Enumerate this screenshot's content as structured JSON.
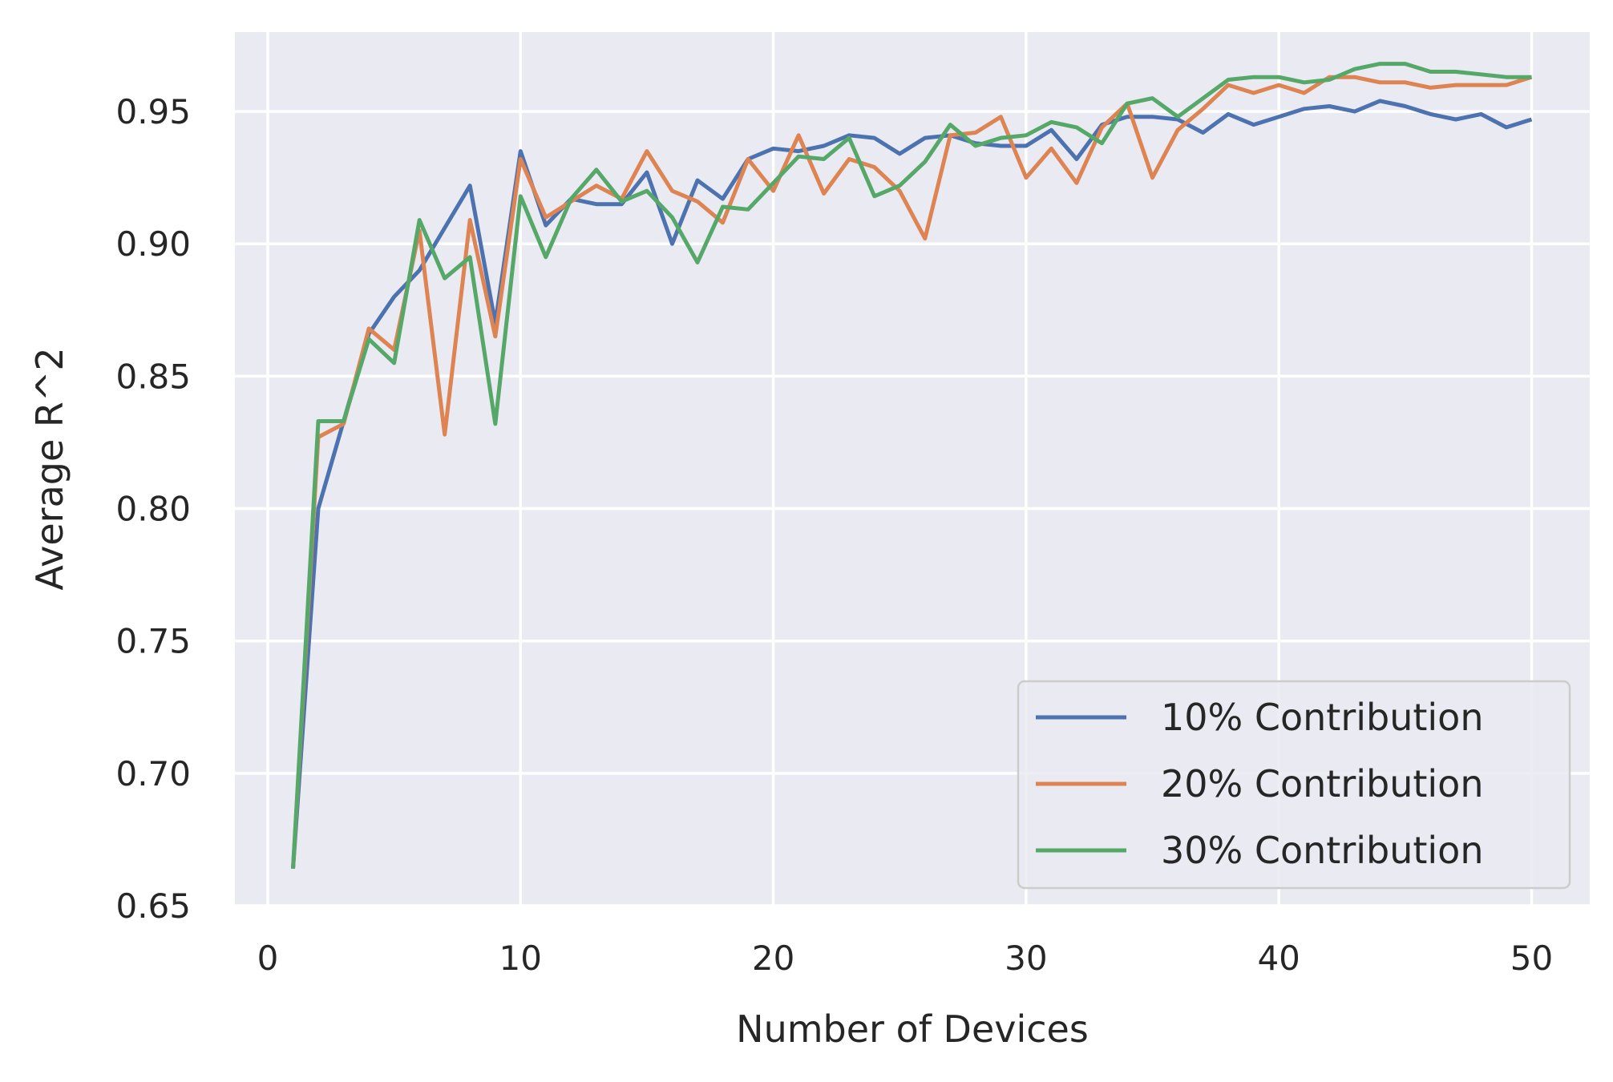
{
  "chart_data": {
    "type": "line",
    "title": "",
    "xlabel": "Number of Devices",
    "ylabel": "Average R^2",
    "xlim": [
      -1.3,
      52.3
    ],
    "ylim": [
      0.65,
      0.98
    ],
    "xticks": [
      0,
      10,
      20,
      30,
      40,
      50
    ],
    "yticks": [
      0.65,
      0.7,
      0.75,
      0.8,
      0.85,
      0.9,
      0.95
    ],
    "xtick_labels": [
      "0",
      "10",
      "20",
      "30",
      "40",
      "50"
    ],
    "ytick_labels": [
      "0.65",
      "0.70",
      "0.75",
      "0.80",
      "0.85",
      "0.90",
      "0.95"
    ],
    "grid": true,
    "background": "#EAEAF2",
    "legend_position": "bottom-right",
    "x": [
      1,
      2,
      3,
      4,
      5,
      6,
      7,
      8,
      9,
      10,
      11,
      12,
      13,
      14,
      15,
      16,
      17,
      18,
      19,
      20,
      21,
      22,
      23,
      24,
      25,
      26,
      27,
      28,
      29,
      30,
      31,
      32,
      33,
      34,
      35,
      36,
      37,
      38,
      39,
      40,
      41,
      42,
      43,
      44,
      45,
      46,
      47,
      48,
      49,
      50
    ],
    "series": [
      {
        "name": "10% Contribution",
        "color": "#4C72B0",
        "values": [
          0.664,
          0.8,
          0.833,
          0.866,
          0.88,
          0.89,
          0.906,
          0.922,
          0.87,
          0.935,
          0.907,
          0.917,
          0.915,
          0.915,
          0.927,
          0.9,
          0.924,
          0.917,
          0.932,
          0.936,
          0.935,
          0.937,
          0.941,
          0.94,
          0.934,
          0.94,
          0.941,
          0.938,
          0.937,
          0.937,
          0.943,
          0.932,
          0.945,
          0.948,
          0.948,
          0.947,
          0.942,
          0.949,
          0.945,
          0.948,
          0.951,
          0.952,
          0.95,
          0.954,
          0.952,
          0.949,
          0.947,
          0.949,
          0.944,
          0.947
        ]
      },
      {
        "name": "20% Contribution",
        "color": "#DD8452",
        "values": [
          0.664,
          0.827,
          0.832,
          0.868,
          0.86,
          0.905,
          0.828,
          0.909,
          0.865,
          0.932,
          0.91,
          0.916,
          0.922,
          0.917,
          0.935,
          0.92,
          0.916,
          0.908,
          0.932,
          0.92,
          0.941,
          0.919,
          0.932,
          0.929,
          0.92,
          0.902,
          0.941,
          0.942,
          0.948,
          0.925,
          0.936,
          0.923,
          0.944,
          0.953,
          0.925,
          0.943,
          0.951,
          0.96,
          0.957,
          0.96,
          0.957,
          0.963,
          0.963,
          0.961,
          0.961,
          0.959,
          0.96,
          0.96,
          0.96,
          0.963
        ]
      },
      {
        "name": "30% Contribution",
        "color": "#55A868",
        "values": [
          0.664,
          0.833,
          0.833,
          0.864,
          0.855,
          0.909,
          0.887,
          0.895,
          0.832,
          0.918,
          0.895,
          0.917,
          0.928,
          0.916,
          0.92,
          0.91,
          0.893,
          0.914,
          0.913,
          0.923,
          0.933,
          0.932,
          0.94,
          0.918,
          0.922,
          0.931,
          0.945,
          0.937,
          0.94,
          0.941,
          0.946,
          0.944,
          0.938,
          0.953,
          0.955,
          0.948,
          0.955,
          0.962,
          0.963,
          0.963,
          0.961,
          0.962,
          0.966,
          0.968,
          0.968,
          0.965,
          0.965,
          0.964,
          0.963,
          0.963
        ]
      }
    ]
  }
}
